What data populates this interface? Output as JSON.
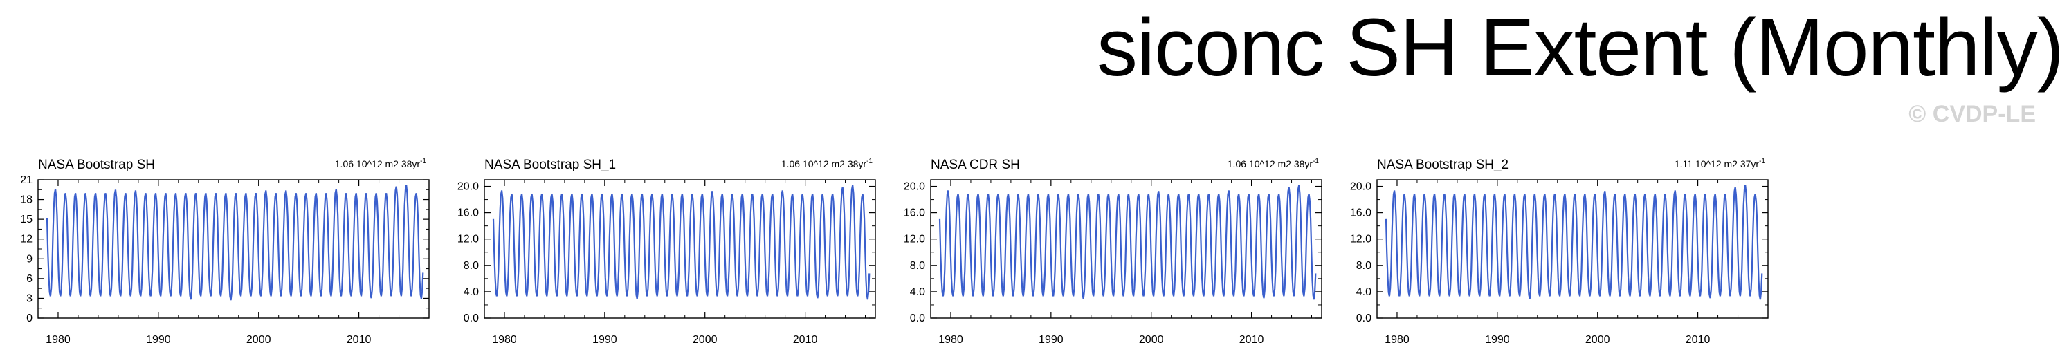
{
  "figure": {
    "title": "siconc SH Extent (Monthly)",
    "watermark": "© CVDP-LE",
    "line_color": "#3a5fcd"
  },
  "chart_data": [
    {
      "type": "line",
      "title": "NASA Bootstrap SH",
      "trend_label": "1.06 10^12 m2 38yr",
      "trend_exponent": "-1",
      "xlim": [
        1978,
        2017
      ],
      "ylim": [
        0,
        21
      ],
      "xticks": [
        1980,
        1990,
        2000,
        2010
      ],
      "xtick_labels": [
        "1980",
        "1990",
        "2000",
        "2010"
      ],
      "yticks": [
        0,
        3,
        6,
        9,
        12,
        15,
        18,
        21
      ],
      "ytick_labels": [
        "0",
        "3",
        "6",
        "9",
        "12",
        "15",
        "18",
        "21"
      ],
      "series": [
        {
          "start": 1978.9,
          "end": 2016.4,
          "min": 3.3,
          "max": 19.0,
          "max_by_year": {
            "1979": 19.6,
            "1985": 19.5,
            "1987": 19.4,
            "2000": 19.4,
            "2002": 19.4,
            "2007": 19.6,
            "2013": 20.0,
            "2014": 20.2
          },
          "min_by_year": {
            "1993": 2.8,
            "1997": 2.7,
            "2011": 3.0,
            "2016": 2.9
          }
        }
      ]
    },
    {
      "type": "line",
      "title": "NASA Bootstrap SH_1",
      "trend_label": "1.06 10^12 m2 38yr",
      "trend_exponent": "-1",
      "xlim": [
        1978,
        2017
      ],
      "ylim": [
        0,
        21
      ],
      "xticks": [
        1980,
        1990,
        2000,
        2010
      ],
      "xtick_labels": [
        "1980",
        "1990",
        "2000",
        "2010"
      ],
      "yticks": [
        0,
        4,
        8,
        12,
        16,
        20
      ],
      "ytick_labels": [
        "0.0",
        "4.0",
        "8.0",
        "12.0",
        "16.0",
        "20.0"
      ],
      "series": [
        {
          "start": 1978.9,
          "end": 2016.4,
          "min": 3.3,
          "max": 18.9,
          "max_by_year": {
            "1979": 19.4,
            "2000": 19.3,
            "2007": 19.4,
            "2013": 19.9,
            "2014": 20.2
          },
          "min_by_year": {
            "1993": 2.9,
            "2011": 3.0,
            "2016": 2.8
          }
        }
      ]
    },
    {
      "type": "line",
      "title": "NASA CDR SH",
      "trend_label": "1.06 10^12 m2 38yr",
      "trend_exponent": "-1",
      "xlim": [
        1978,
        2017
      ],
      "ylim": [
        0,
        21
      ],
      "xticks": [
        1980,
        1990,
        2000,
        2010
      ],
      "xtick_labels": [
        "1980",
        "1990",
        "2000",
        "2010"
      ],
      "yticks": [
        0,
        4,
        8,
        12,
        16,
        20
      ],
      "ytick_labels": [
        "0.0",
        "4.0",
        "8.0",
        "12.0",
        "16.0",
        "20.0"
      ],
      "series": [
        {
          "start": 1978.9,
          "end": 2016.4,
          "min": 3.3,
          "max": 18.9,
          "max_by_year": {
            "1979": 19.4,
            "2000": 19.3,
            "2007": 19.4,
            "2013": 19.9,
            "2014": 20.2
          },
          "min_by_year": {
            "1993": 2.9,
            "2011": 3.0,
            "2016": 2.8
          }
        }
      ]
    },
    {
      "type": "line",
      "title": "NASA Bootstrap SH_2",
      "trend_label": "1.11 10^12 m2 37yr",
      "trend_exponent": "-1",
      "xlim": [
        1978,
        2017
      ],
      "ylim": [
        0,
        21
      ],
      "xticks": [
        1980,
        1990,
        2000,
        2010
      ],
      "xtick_labels": [
        "1980",
        "1990",
        "2000",
        "2010"
      ],
      "yticks": [
        0,
        4,
        8,
        12,
        16,
        20
      ],
      "ytick_labels": [
        "0.0",
        "4.0",
        "8.0",
        "12.0",
        "16.0",
        "20.0"
      ],
      "series": [
        {
          "start": 1978.9,
          "end": 2016.4,
          "min": 3.3,
          "max": 18.9,
          "max_by_year": {
            "1979": 19.4,
            "2000": 19.3,
            "2007": 19.4,
            "2013": 19.9,
            "2014": 20.2
          },
          "min_by_year": {
            "1993": 2.9,
            "2011": 3.0,
            "2016": 2.8
          }
        }
      ]
    }
  ]
}
